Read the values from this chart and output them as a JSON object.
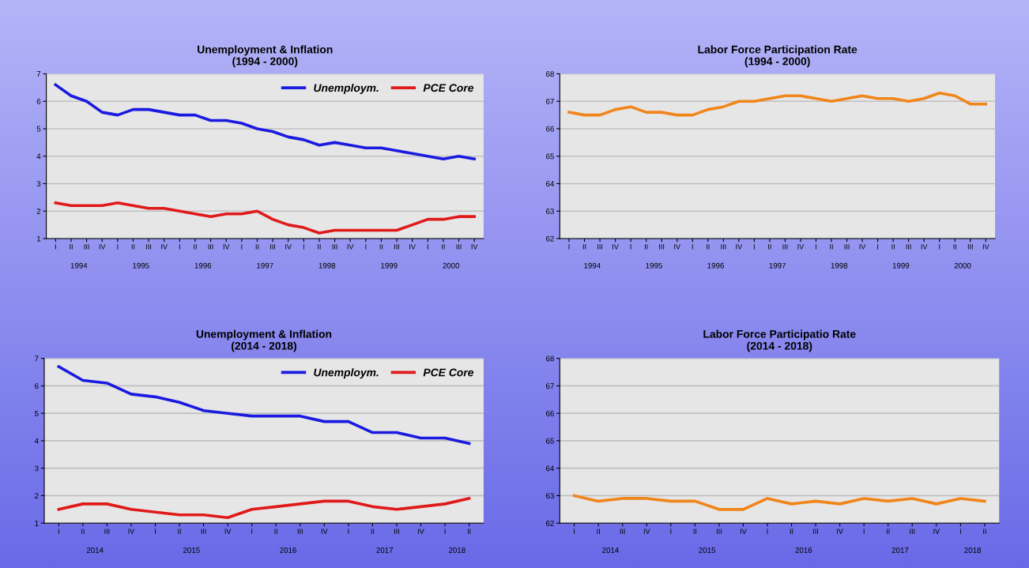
{
  "chart_data": [
    {
      "type": "line",
      "title": "Unemployment & Inflation\n(1994 - 2000)",
      "categories": [
        "I",
        "II",
        "III",
        "IV",
        "I",
        "II",
        "III",
        "IV",
        "I",
        "II",
        "III",
        "IV",
        "I",
        "II",
        "III",
        "IV",
        "I",
        "II",
        "III",
        "IV",
        "I",
        "II",
        "III",
        "IV",
        "I",
        "II",
        "III",
        "IV"
      ],
      "annotations": [
        "1994",
        "1995",
        "1996",
        "1997",
        "1998",
        "1999",
        "2000"
      ],
      "ylim": [
        1,
        7
      ],
      "yticks": [
        1,
        2,
        3,
        4,
        5,
        6,
        7
      ],
      "grid": "y",
      "legend": "top right",
      "series": [
        {
          "name": "Unemploym.",
          "color": "#1a1ae0",
          "values": [
            6.6,
            6.2,
            6.0,
            5.6,
            5.5,
            5.7,
            5.7,
            5.6,
            5.5,
            5.5,
            5.3,
            5.3,
            5.2,
            5.0,
            4.9,
            4.7,
            4.6,
            4.4,
            4.5,
            4.4,
            4.3,
            4.3,
            4.2,
            4.1,
            4.0,
            3.9,
            4.0,
            3.9
          ]
        },
        {
          "name": "PCE Core",
          "color": "#e01a1a",
          "values": [
            2.3,
            2.2,
            2.2,
            2.2,
            2.3,
            2.2,
            2.1,
            2.1,
            2.0,
            1.9,
            1.8,
            1.9,
            1.9,
            2.0,
            1.7,
            1.5,
            1.4,
            1.2,
            1.3,
            1.3,
            1.3,
            1.3,
            1.3,
            1.5,
            1.7,
            1.7,
            1.8,
            1.8
          ]
        }
      ]
    },
    {
      "type": "line",
      "title": "Labor Force Participation Rate\n(1994 - 2000)",
      "categories": [
        "I",
        "II",
        "III",
        "IV",
        "I",
        "II",
        "III",
        "IV",
        "I",
        "II",
        "III",
        "IV",
        "I",
        "II",
        "III",
        "IV",
        "I",
        "II",
        "III",
        "IV",
        "I",
        "II",
        "III",
        "IV",
        "I",
        "II",
        "III",
        "IV"
      ],
      "annotations": [
        "1994",
        "1995",
        "1996",
        "1997",
        "1998",
        "1999",
        "2000"
      ],
      "ylim": [
        62,
        68
      ],
      "yticks": [
        62,
        63,
        64,
        65,
        66,
        67,
        68
      ],
      "grid": "y",
      "series": [
        {
          "color": "#f0851a",
          "values": [
            66.6,
            66.5,
            66.5,
            66.7,
            66.8,
            66.6,
            66.6,
            66.5,
            66.5,
            66.7,
            66.8,
            67.0,
            67.0,
            67.1,
            67.2,
            67.2,
            67.1,
            67.0,
            67.1,
            67.2,
            67.1,
            67.1,
            67.0,
            67.1,
            67.3,
            67.2,
            66.9,
            66.9
          ]
        }
      ]
    },
    {
      "type": "line",
      "title": "Unemployment & Inflation\n(2014 - 2018)",
      "categories": [
        "I",
        "II",
        "III",
        "IV",
        "I",
        "II",
        "III",
        "IV",
        "I",
        "II",
        "III",
        "IV",
        "I",
        "II",
        "III",
        "IV",
        "I",
        "II"
      ],
      "annotations": [
        "2014",
        "2015",
        "2016",
        "2017",
        "2018"
      ],
      "ylim": [
        1,
        7
      ],
      "yticks": [
        1,
        2,
        3,
        4,
        5,
        6,
        7
      ],
      "grid": "y",
      "legend": "top right",
      "series": [
        {
          "name": "Unemploym.",
          "color": "#1a1ae0",
          "values": [
            6.7,
            6.2,
            6.1,
            5.7,
            5.6,
            5.4,
            5.1,
            5.0,
            4.9,
            4.9,
            4.9,
            4.7,
            4.7,
            4.3,
            4.3,
            4.1,
            4.1,
            3.9
          ]
        },
        {
          "name": "PCE Core",
          "color": "#e01a1a",
          "values": [
            1.5,
            1.7,
            1.7,
            1.5,
            1.4,
            1.3,
            1.3,
            1.2,
            1.5,
            1.6,
            1.7,
            1.8,
            1.8,
            1.6,
            1.5,
            1.6,
            1.7,
            1.9
          ]
        }
      ]
    },
    {
      "type": "line",
      "title": "Labor Force Participatio Rate\n(2014 - 2018)",
      "categories": [
        "I",
        "II",
        "III",
        "IV",
        "I",
        "II",
        "III",
        "IV",
        "I",
        "II",
        "III",
        "IV",
        "I",
        "II",
        "III",
        "IV",
        "I",
        "II"
      ],
      "annotations": [
        "2014",
        "2015",
        "2016",
        "2017",
        "2018"
      ],
      "ylim": [
        62,
        68
      ],
      "yticks": [
        62,
        63,
        64,
        65,
        66,
        67,
        68
      ],
      "grid": "y",
      "series": [
        {
          "color": "#f0851a",
          "values": [
            63.0,
            62.8,
            62.9,
            62.9,
            62.8,
            62.8,
            62.5,
            62.5,
            62.9,
            62.7,
            62.8,
            62.7,
            62.9,
            62.8,
            62.9,
            62.7,
            62.9,
            62.8
          ]
        }
      ]
    }
  ]
}
